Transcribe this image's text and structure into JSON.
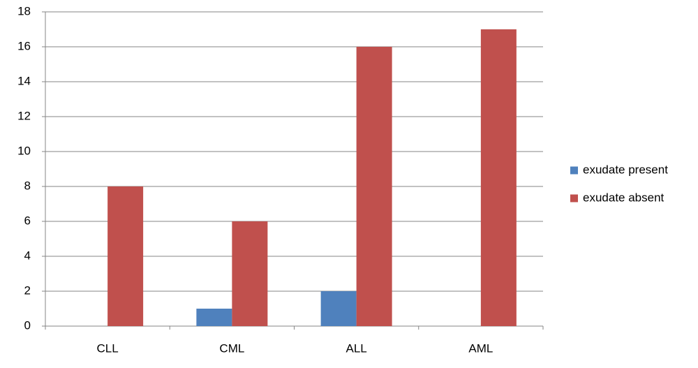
{
  "chart_data": {
    "type": "bar",
    "categories": [
      "CLL",
      "CML",
      "ALL",
      "AML"
    ],
    "series": [
      {
        "name": "exudate present",
        "color": "#4f81bd",
        "values": [
          0,
          1,
          2,
          0
        ]
      },
      {
        "name": "exudate absent",
        "color": "#c0504d",
        "values": [
          8,
          6,
          16,
          17
        ]
      }
    ],
    "ylim": [
      0,
      18
    ],
    "yticks": [
      0,
      2,
      4,
      6,
      8,
      10,
      12,
      14,
      16,
      18
    ],
    "grid": true,
    "legend": "right"
  }
}
